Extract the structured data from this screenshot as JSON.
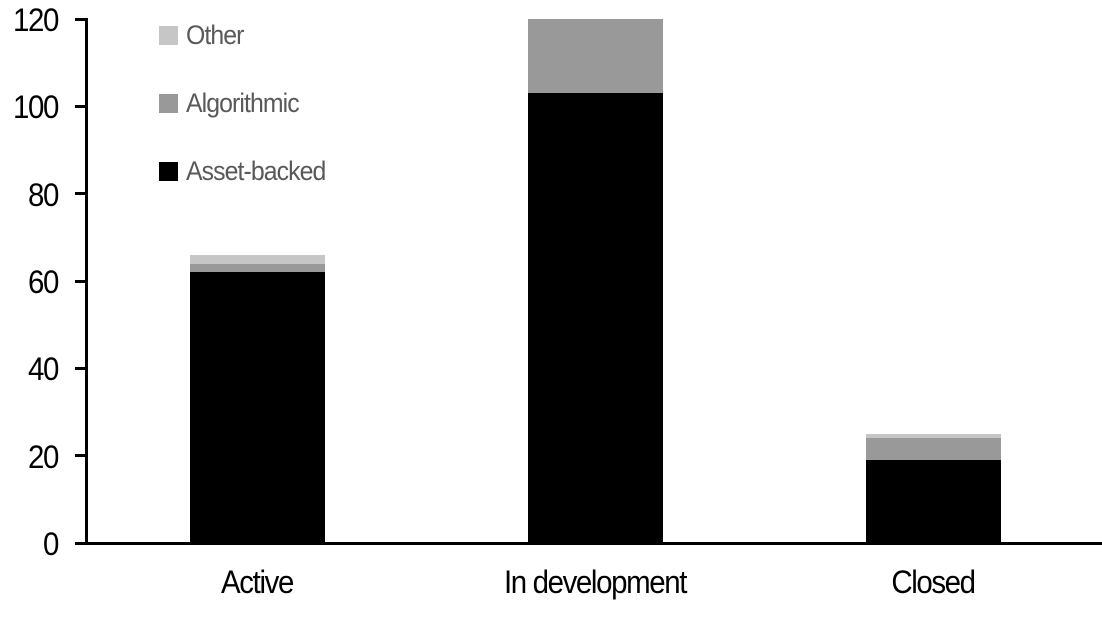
{
  "chart_data": {
    "type": "bar",
    "stacked": true,
    "title": "",
    "xlabel": "",
    "ylabel": "",
    "categories": [
      "Active",
      "In development",
      "Closed"
    ],
    "series": [
      {
        "name": "Asset-backed",
        "color": "#000000",
        "values": [
          62,
          103,
          19
        ]
      },
      {
        "name": "Algorithmic",
        "color": "#999999",
        "values": [
          2,
          17,
          5
        ]
      },
      {
        "name": "Other",
        "color": "#c6c6c6",
        "values": [
          2,
          0,
          1
        ]
      }
    ],
    "totals": [
      66,
      120,
      25
    ],
    "ylim": [
      0,
      120
    ],
    "yticks": [
      0,
      20,
      40,
      60,
      80,
      100,
      120
    ],
    "grid": false,
    "legend_position": "top-left-inside",
    "legend_order_top_to_bottom": [
      "Other",
      "Algorithmic",
      "Asset-backed"
    ],
    "axis_color": "#000000",
    "legend_text_color": "#595959",
    "tick_label_color": "#000000"
  }
}
